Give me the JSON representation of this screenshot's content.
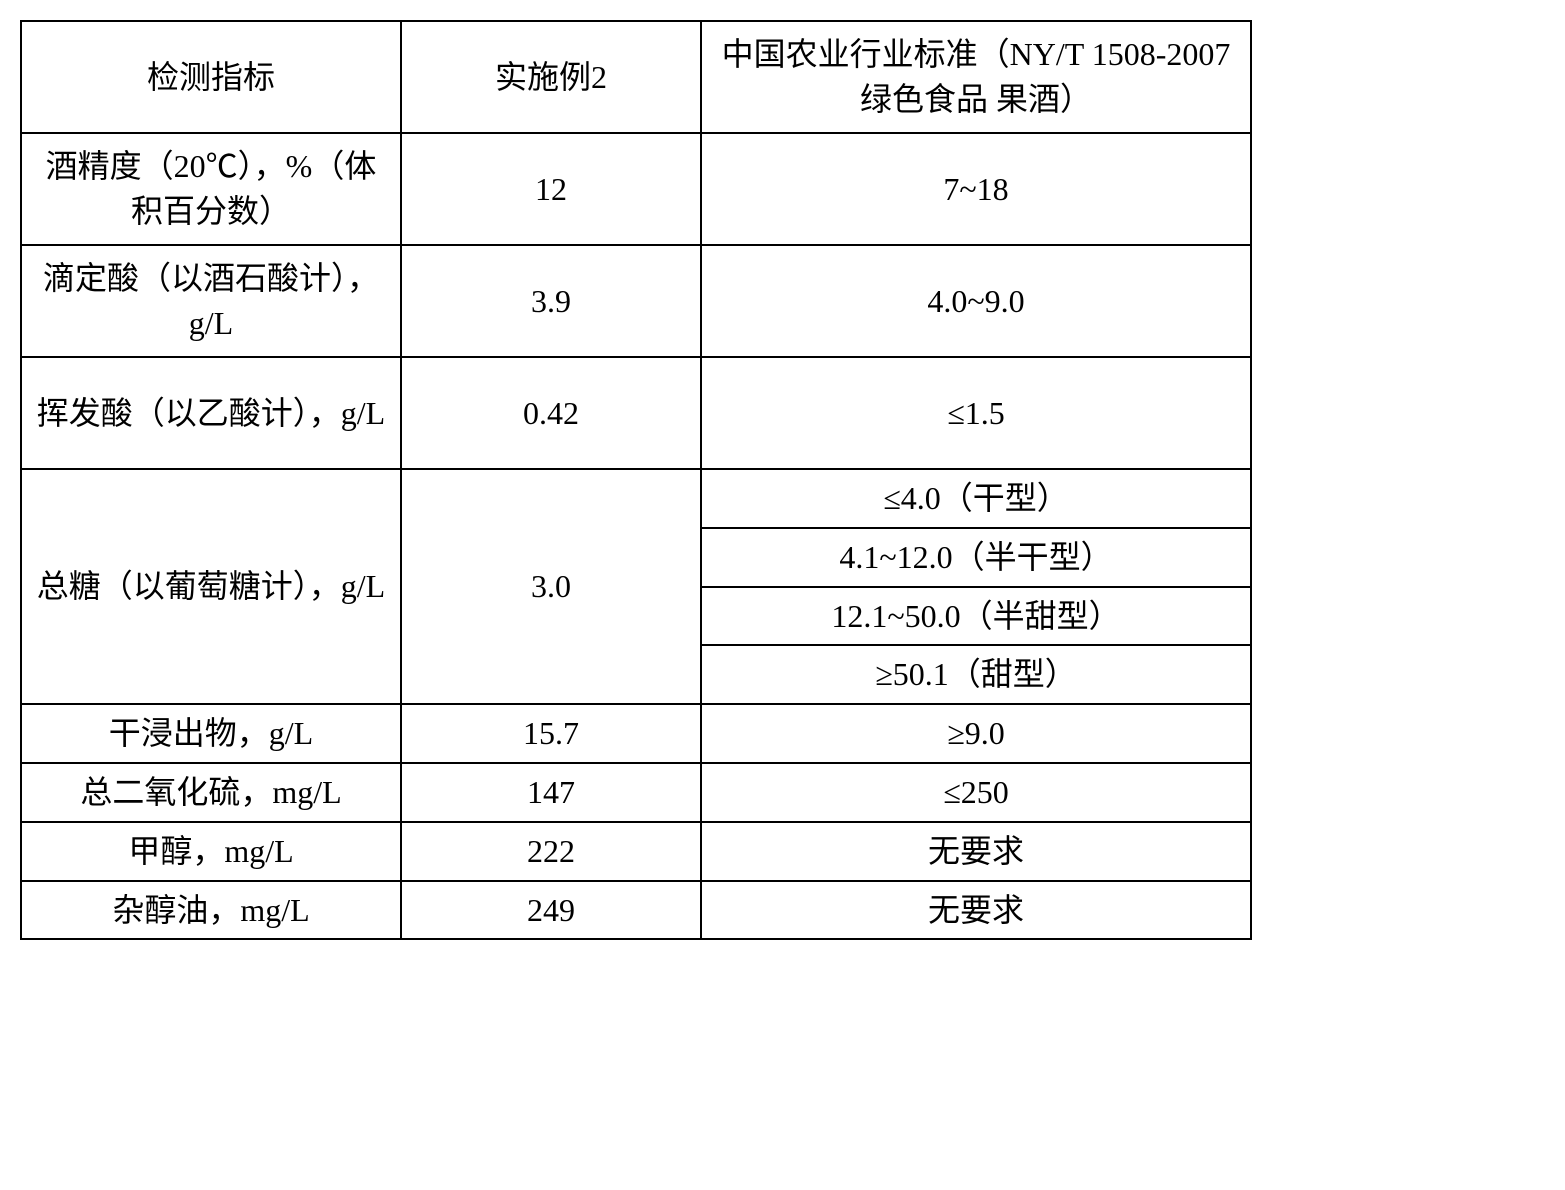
{
  "table": {
    "header": {
      "c1": "检测指标",
      "c2": "实施例2",
      "c3": "中国农业行业标准（NY/T 1508-2007 绿色食品 果酒）"
    },
    "rows": [
      {
        "indicator": "酒精度（20℃），%（体积百分数）",
        "value": "12",
        "standard": "7~18"
      },
      {
        "indicator": "滴定酸（以酒石酸计），g/L",
        "value": "3.9",
        "standard": "4.0~9.0"
      },
      {
        "indicator": "挥发酸（以乙酸计），g/L",
        "value": "0.42",
        "standard": "≤1.5"
      }
    ],
    "sugar": {
      "indicator": "总糖（以葡萄糖计），g/L",
      "value": "3.0",
      "standards": [
        "≤4.0（干型）",
        "4.1~12.0（半干型）",
        "12.1~50.0（半甜型）",
        "≥50.1（甜型）"
      ]
    },
    "rows2": [
      {
        "indicator": "干浸出物，g/L",
        "value": "15.7",
        "standard": "≥9.0"
      },
      {
        "indicator": "总二氧化硫，mg/L",
        "value": "147",
        "standard": "≤250"
      },
      {
        "indicator": "甲醇，mg/L",
        "value": "222",
        "standard": "无要求"
      },
      {
        "indicator": "杂醇油，mg/L",
        "value": "249",
        "standard": "无要求"
      }
    ]
  }
}
